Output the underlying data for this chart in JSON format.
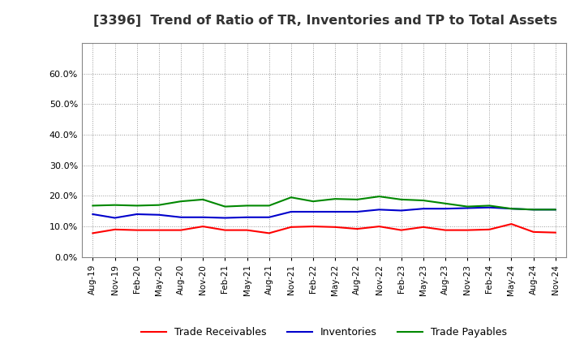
{
  "title": "[3396]  Trend of Ratio of TR, Inventories and TP to Total Assets",
  "title_fontsize": 11.5,
  "ylim": [
    0.0,
    0.7
  ],
  "yticks": [
    0.0,
    0.1,
    0.2,
    0.3,
    0.4,
    0.5,
    0.6
  ],
  "background_color": "#ffffff",
  "plot_bg_color": "#ffffff",
  "grid_color": "#999999",
  "legend_labels": [
    "Trade Receivables",
    "Inventories",
    "Trade Payables"
  ],
  "legend_colors": [
    "#ff0000",
    "#0000cc",
    "#008800"
  ],
  "dates": [
    "Aug-19",
    "Nov-19",
    "Feb-20",
    "May-20",
    "Aug-20",
    "Nov-20",
    "Feb-21",
    "May-21",
    "Aug-21",
    "Nov-21",
    "Feb-22",
    "May-22",
    "Aug-22",
    "Nov-22",
    "Feb-23",
    "May-23",
    "Aug-23",
    "Nov-23",
    "Feb-24",
    "May-24",
    "Aug-24",
    "Nov-24"
  ],
  "trade_receivables": [
    0.078,
    0.09,
    0.088,
    0.088,
    0.088,
    0.1,
    0.088,
    0.088,
    0.078,
    0.098,
    0.1,
    0.098,
    0.092,
    0.1,
    0.088,
    0.098,
    0.088,
    0.088,
    0.09,
    0.108,
    0.082,
    0.08
  ],
  "inventories": [
    0.14,
    0.128,
    0.14,
    0.138,
    0.13,
    0.13,
    0.128,
    0.13,
    0.13,
    0.148,
    0.148,
    0.148,
    0.148,
    0.155,
    0.152,
    0.158,
    0.158,
    0.16,
    0.162,
    0.158,
    0.155,
    0.155
  ],
  "trade_payables": [
    0.168,
    0.17,
    0.168,
    0.17,
    0.182,
    0.188,
    0.165,
    0.168,
    0.168,
    0.195,
    0.182,
    0.19,
    0.188,
    0.198,
    0.188,
    0.185,
    0.175,
    0.165,
    0.168,
    0.158,
    0.155,
    0.155
  ],
  "line_width": 1.5
}
